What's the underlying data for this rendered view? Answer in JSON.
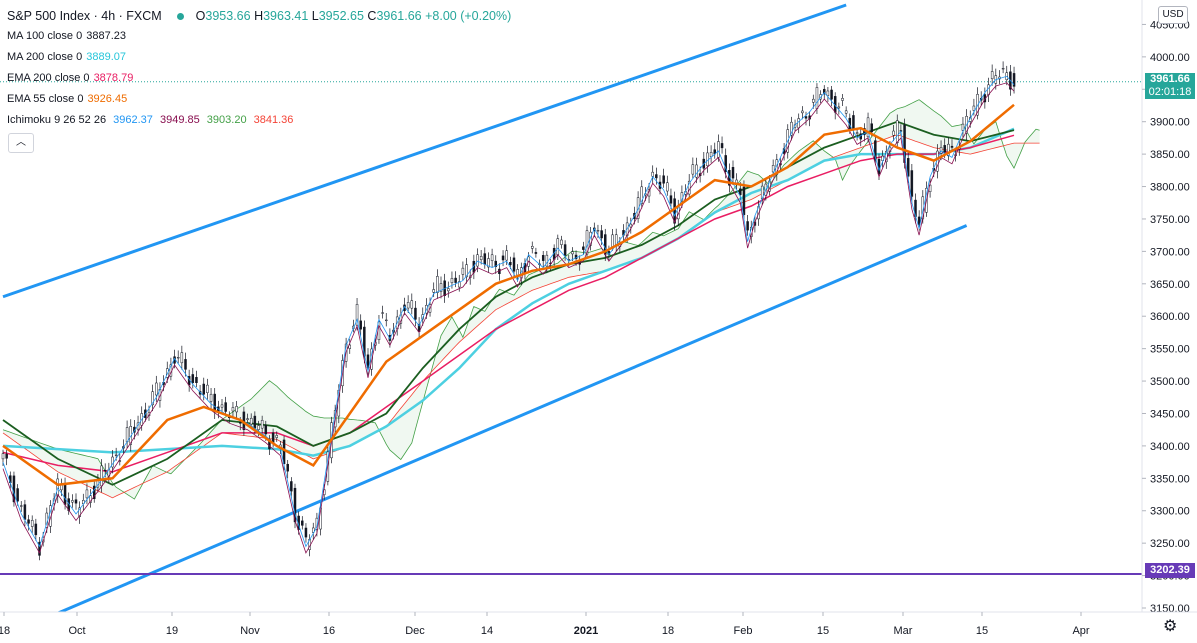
{
  "header": {
    "symbol": "S&P 500 Index · 4h · FXCM",
    "ohlc": {
      "o_label": "O",
      "o": "3953.66",
      "h_label": "H",
      "h": "3963.41",
      "l_label": "L",
      "l": "3952.65",
      "c_label": "C",
      "c": "3961.66",
      "change": "+8.00 (+0.20%)"
    }
  },
  "indicators": [
    {
      "label": "MA 100 close 0",
      "value": "3887.23",
      "color": "#131722"
    },
    {
      "label": "MA 200 close 0",
      "value": "3889.07",
      "color": "#26c6da"
    },
    {
      "label": "EMA 200 close 0",
      "value": "3878.79",
      "color": "#e91e63"
    },
    {
      "label": "EMA 55 close 0",
      "value": "3926.45",
      "color": "#ef6c00"
    }
  ],
  "ichimoku": {
    "label": "Ichimoku 9 26 52 26",
    "values": [
      "3962.37",
      "3949.85",
      "3903.20",
      "3841.36"
    ],
    "colors": [
      "#2196f3",
      "#880e4f",
      "#43a047",
      "#f44336"
    ]
  },
  "currency": "USD",
  "last_price": {
    "value": "3961.66",
    "countdown": "02:01:18",
    "color": "#26a69a"
  },
  "support_level": {
    "value": "3202.39",
    "color": "#673ab7",
    "price": 3202.39
  },
  "colors": {
    "channel": "#2196f3",
    "ma100": "#1b5e20",
    "ema200": "#e91e63",
    "ma200": "#4dd0e1",
    "ema55": "#ef6c00",
    "tenkan": "#2196f3",
    "kijun": "#880e4f",
    "cloud_up": "#43a047",
    "cloud_dn": "#f44336",
    "candle": "#131722"
  },
  "chart_data": {
    "type": "line",
    "title": "S&P 500 Index · 4h · FXCM",
    "x_ticks": [
      "18",
      "Oct",
      "19",
      "Nov",
      "16",
      "Dec",
      "14",
      "2021",
      "18",
      "Feb",
      "15",
      "Mar",
      "15",
      "Apr"
    ],
    "y_ticks": [
      3150,
      3200,
      3250,
      3300,
      3350,
      3400,
      3450,
      3500,
      3550,
      3600,
      3650,
      3700,
      3750,
      3800,
      3850,
      3900,
      3950,
      4000,
      4050
    ],
    "ylim": [
      3130,
      4080
    ],
    "grid": false,
    "series": [
      {
        "name": "S&P 500 Index",
        "key": "price",
        "points": [
          [
            0,
            3380
          ],
          [
            5,
            3300
          ],
          [
            10,
            3250
          ],
          [
            15,
            3340
          ],
          [
            20,
            3300
          ],
          [
            28,
            3360
          ],
          [
            35,
            3420
          ],
          [
            42,
            3480
          ],
          [
            47,
            3540
          ],
          [
            52,
            3500
          ],
          [
            57,
            3470
          ],
          [
            62,
            3450
          ],
          [
            67,
            3440
          ],
          [
            72,
            3420
          ],
          [
            76,
            3400
          ],
          [
            80,
            3300
          ],
          [
            83,
            3250
          ],
          [
            86,
            3280
          ],
          [
            90,
            3420
          ],
          [
            94,
            3560
          ],
          [
            97,
            3600
          ],
          [
            100,
            3520
          ],
          [
            103,
            3600
          ],
          [
            106,
            3570
          ],
          [
            110,
            3620
          ],
          [
            114,
            3590
          ],
          [
            118,
            3640
          ],
          [
            122,
            3650
          ],
          [
            126,
            3660
          ],
          [
            130,
            3690
          ],
          [
            134,
            3680
          ],
          [
            138,
            3690
          ],
          [
            141,
            3660
          ],
          [
            144,
            3700
          ],
          [
            148,
            3680
          ],
          [
            152,
            3710
          ],
          [
            155,
            3690
          ],
          [
            159,
            3700
          ],
          [
            162,
            3740
          ],
          [
            166,
            3700
          ],
          [
            170,
            3730
          ],
          [
            174,
            3770
          ],
          [
            178,
            3820
          ],
          [
            181,
            3800
          ],
          [
            184,
            3760
          ],
          [
            188,
            3810
          ],
          [
            192,
            3840
          ],
          [
            196,
            3860
          ],
          [
            199,
            3820
          ],
          [
            202,
            3790
          ],
          [
            204,
            3720
          ],
          [
            206,
            3760
          ],
          [
            209,
            3800
          ],
          [
            213,
            3850
          ],
          [
            217,
            3900
          ],
          [
            221,
            3920
          ],
          [
            225,
            3950
          ],
          [
            228,
            3930
          ],
          [
            231,
            3910
          ],
          [
            234,
            3880
          ],
          [
            237,
            3890
          ],
          [
            240,
            3830
          ],
          [
            243,
            3870
          ],
          [
            246,
            3890
          ],
          [
            249,
            3780
          ],
          [
            251,
            3740
          ],
          [
            254,
            3820
          ],
          [
            257,
            3860
          ],
          [
            260,
            3850
          ],
          [
            263,
            3890
          ],
          [
            266,
            3920
          ],
          [
            269,
            3950
          ],
          [
            272,
            3970
          ],
          [
            275,
            3975
          ],
          [
            277,
            3962
          ]
        ]
      },
      {
        "name": "EMA 55",
        "key": "ema55",
        "points": [
          [
            0,
            3400
          ],
          [
            15,
            3340
          ],
          [
            30,
            3350
          ],
          [
            45,
            3440
          ],
          [
            55,
            3460
          ],
          [
            65,
            3440
          ],
          [
            75,
            3400
          ],
          [
            85,
            3370
          ],
          [
            95,
            3450
          ],
          [
            105,
            3530
          ],
          [
            115,
            3570
          ],
          [
            125,
            3610
          ],
          [
            135,
            3650
          ],
          [
            145,
            3670
          ],
          [
            155,
            3680
          ],
          [
            165,
            3700
          ],
          [
            175,
            3730
          ],
          [
            185,
            3770
          ],
          [
            195,
            3810
          ],
          [
            205,
            3800
          ],
          [
            215,
            3830
          ],
          [
            225,
            3880
          ],
          [
            235,
            3890
          ],
          [
            245,
            3860
          ],
          [
            255,
            3840
          ],
          [
            265,
            3870
          ],
          [
            277,
            3926
          ]
        ]
      },
      {
        "name": "MA 100",
        "key": "ma100",
        "points": [
          [
            0,
            3440
          ],
          [
            15,
            3380
          ],
          [
            30,
            3340
          ],
          [
            45,
            3380
          ],
          [
            60,
            3440
          ],
          [
            75,
            3430
          ],
          [
            85,
            3400
          ],
          [
            95,
            3420
          ],
          [
            105,
            3450
          ],
          [
            115,
            3520
          ],
          [
            125,
            3580
          ],
          [
            135,
            3630
          ],
          [
            145,
            3660
          ],
          [
            155,
            3680
          ],
          [
            165,
            3690
          ],
          [
            175,
            3710
          ],
          [
            185,
            3740
          ],
          [
            195,
            3780
          ],
          [
            205,
            3800
          ],
          [
            215,
            3830
          ],
          [
            225,
            3860
          ],
          [
            235,
            3880
          ],
          [
            245,
            3900
          ],
          [
            255,
            3880
          ],
          [
            265,
            3870
          ],
          [
            277,
            3887
          ]
        ]
      },
      {
        "name": "EMA 200",
        "key": "ema200",
        "points": [
          [
            0,
            3390
          ],
          [
            15,
            3370
          ],
          [
            30,
            3360
          ],
          [
            45,
            3390
          ],
          [
            60,
            3420
          ],
          [
            75,
            3420
          ],
          [
            85,
            3400
          ],
          [
            95,
            3420
          ],
          [
            105,
            3460
          ],
          [
            115,
            3500
          ],
          [
            125,
            3540
          ],
          [
            135,
            3580
          ],
          [
            145,
            3610
          ],
          [
            155,
            3640
          ],
          [
            165,
            3660
          ],
          [
            175,
            3690
          ],
          [
            185,
            3720
          ],
          [
            195,
            3750
          ],
          [
            205,
            3770
          ],
          [
            215,
            3800
          ],
          [
            225,
            3820
          ],
          [
            235,
            3840
          ],
          [
            245,
            3850
          ],
          [
            255,
            3850
          ],
          [
            265,
            3860
          ],
          [
            277,
            3879
          ]
        ]
      },
      {
        "name": "MA 200",
        "key": "ma200",
        "points": [
          [
            0,
            3400
          ],
          [
            15,
            3395
          ],
          [
            30,
            3390
          ],
          [
            45,
            3395
          ],
          [
            60,
            3400
          ],
          [
            75,
            3395
          ],
          [
            85,
            3385
          ],
          [
            95,
            3400
          ],
          [
            105,
            3430
          ],
          [
            115,
            3470
          ],
          [
            125,
            3520
          ],
          [
            135,
            3580
          ],
          [
            145,
            3620
          ],
          [
            155,
            3650
          ],
          [
            165,
            3670
          ],
          [
            175,
            3690
          ],
          [
            185,
            3720
          ],
          [
            195,
            3760
          ],
          [
            205,
            3790
          ],
          [
            215,
            3810
          ],
          [
            225,
            3840
          ],
          [
            235,
            3850
          ],
          [
            245,
            3850
          ],
          [
            255,
            3850
          ],
          [
            265,
            3860
          ],
          [
            277,
            3889
          ]
        ]
      }
    ],
    "channel": {
      "upper": [
        [
          0,
          3630
        ],
        [
          231,
          4080
        ]
      ],
      "lower": [
        [
          10,
          3130
        ],
        [
          264,
          3740
        ]
      ]
    }
  }
}
